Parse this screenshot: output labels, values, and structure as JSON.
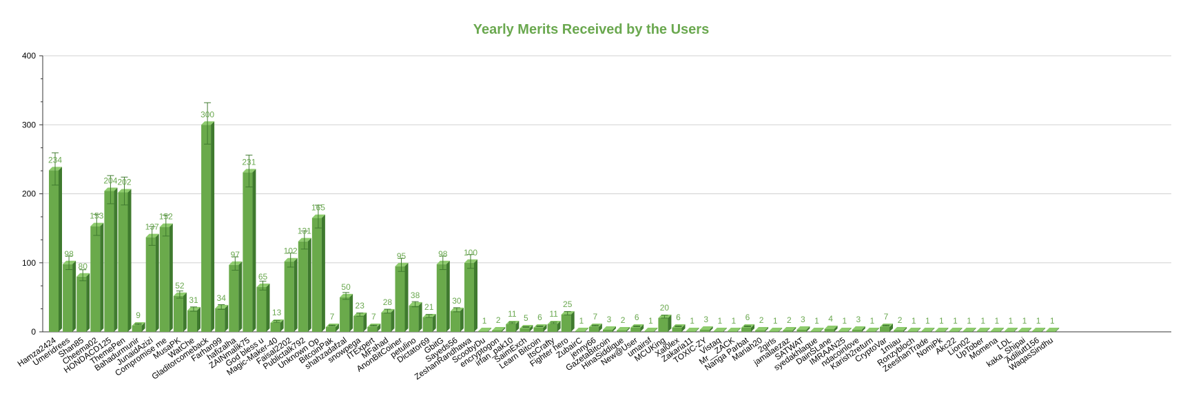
{
  "chart_data": {
    "type": "bar",
    "title": "Yearly Merits Received by the Users",
    "xlabel": "",
    "ylabel": "",
    "ylim": [
      0,
      400
    ],
    "yticks": [
      0,
      100,
      200,
      300,
      400
    ],
    "grid": true,
    "error_bars": true,
    "data_labels": true,
    "categories": [
      "Hamza2424",
      "Umeridrees",
      "Shan85",
      "Cheema02",
      "HONDACD125",
      "ThemePen",
      "Bahadurmunir",
      "JunaidAzizi",
      "Compromise me",
      "MusaPK",
      "WatChe",
      "Gladitorcomeback",
      "Farhan99",
      "hafizalha",
      "ZAINmalik75",
      "God bless u",
      "Magic-Maker-40",
      "Faisal2202",
      "Publictalk792",
      "Unknown Op",
      "BitcoinPak",
      "shahzadafzal",
      "snowpega",
      "ITExpert",
      "MFahad",
      "AnonBitCoiner",
      "petulino",
      "Dictator69",
      "GbitG",
      "Sayeds56",
      "ZeshanRandhawa",
      "ScoobyDu",
      "encryptogon",
      "irfan_pak10",
      "SaimExch",
      "Learn Bitcoin",
      "ItsCrafty",
      "Fighter hero",
      "ZubairC",
      "jenny66",
      "GazetaBitcoin",
      "HinaSiddique",
      "New@User",
      "umairsf",
      "MCUKing",
      "Xal0lex",
      "Zakaria11",
      "TOXIC-ZY",
      "Vistaq",
      "Mr__ZACK",
      "Nanga Parbat",
      "Mariah20",
      "2girls",
      "jamalaezaz",
      "SATWAT",
      "syedakhlaque",
      "DainSLane",
      "IMRAAN25",
      "ndacoinlove",
      "Karish2return",
      "CryptoVar",
      "1miau",
      "Ronzybloch",
      "ZeeshanTrade",
      "NomiPk",
      "Akc22",
      "Lion02",
      "UpTober",
      "Momena",
      "LDL",
      "kaka_Shipai",
      "Adiliutt156",
      "WaqasSindhu"
    ],
    "values": [
      234,
      98,
      80,
      153,
      204,
      202,
      9,
      137,
      152,
      52,
      31,
      300,
      34,
      97,
      231,
      65,
      13,
      102,
      131,
      165,
      7,
      50,
      23,
      7,
      28,
      95,
      38,
      21,
      98,
      30,
      100,
      1,
      2,
      11,
      5,
      6,
      11,
      25,
      1,
      7,
      3,
      2,
      6,
      1,
      20,
      6,
      1,
      3,
      1,
      1,
      6,
      2,
      1,
      2,
      3,
      1,
      4,
      1,
      3,
      1,
      7,
      2,
      1,
      1,
      1,
      1,
      1,
      1,
      1,
      1,
      1,
      1,
      1
    ]
  },
  "colors": {
    "bar_front": "#6aaa4b",
    "bar_side": "#3f7a2e",
    "bar_top": "#8ecb6d",
    "accent": "#6aa84f",
    "grid": "#d0d0d0",
    "axis": "#333333"
  }
}
